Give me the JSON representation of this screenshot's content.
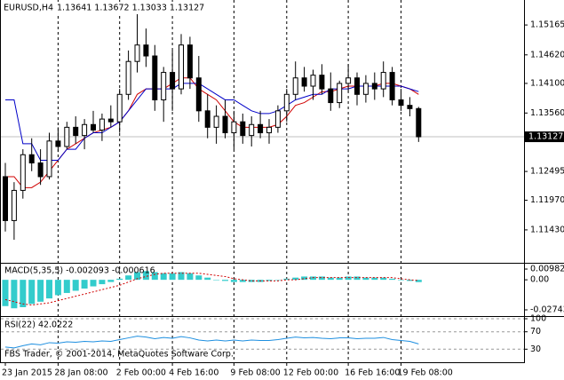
{
  "chart_data": {
    "type": "candlestick",
    "symbol": "EURUSD,H4",
    "quote": "1.13641 1.13672 1.13033 1.13127",
    "categories": [
      "23 Jan 2015",
      null,
      null,
      null,
      null,
      null,
      "28 Jan 08:00",
      null,
      null,
      null,
      null,
      null,
      null,
      "2 Feb 00:00",
      null,
      null,
      null,
      null,
      null,
      "4 Feb 16:00",
      null,
      null,
      null,
      null,
      null,
      null,
      "9 Feb 08:00",
      null,
      null,
      null,
      null,
      null,
      "12 Feb 00:00",
      null,
      null,
      null,
      null,
      null,
      null,
      "16 Feb 16:00",
      null,
      null,
      null,
      null,
      null,
      "19 Feb 08:00",
      null,
      null
    ],
    "open": [
      1.124,
      1.116,
      1.1215,
      1.128,
      1.1265,
      1.124,
      1.1305,
      1.1295,
      1.133,
      1.1315,
      1.1335,
      1.1325,
      1.1345,
      1.134,
      1.139,
      1.145,
      1.148,
      1.146,
      1.138,
      1.143,
      1.14,
      1.148,
      1.142,
      1.136,
      1.133,
      1.135,
      1.132,
      1.134,
      1.1315,
      1.1335,
      1.132,
      1.133,
      1.136,
      1.139,
      1.142,
      1.1405,
      1.1425,
      1.14,
      1.1375,
      1.141,
      1.142,
      1.139,
      1.141,
      1.14,
      1.143,
      1.138,
      1.137,
      1.13641
    ],
    "high": [
      1.1265,
      1.123,
      1.129,
      1.131,
      1.129,
      1.132,
      1.133,
      1.134,
      1.135,
      1.1345,
      1.136,
      1.1355,
      1.137,
      1.14,
      1.147,
      1.154,
      1.151,
      1.148,
      1.144,
      1.147,
      1.15,
      1.1495,
      1.146,
      1.139,
      1.137,
      1.138,
      1.136,
      1.1355,
      1.135,
      1.136,
      1.1345,
      1.137,
      1.14,
      1.145,
      1.144,
      1.1435,
      1.1445,
      1.143,
      1.1415,
      1.1445,
      1.143,
      1.1425,
      1.143,
      1.145,
      1.144,
      1.14,
      1.1385,
      1.13672
    ],
    "low": [
      1.114,
      1.1125,
      1.12,
      1.125,
      1.1225,
      1.1235,
      1.1285,
      1.129,
      1.13,
      1.129,
      1.132,
      1.1305,
      1.133,
      1.132,
      1.138,
      1.143,
      1.144,
      1.136,
      1.134,
      1.136,
      1.139,
      1.14,
      1.134,
      1.131,
      1.13,
      1.131,
      1.129,
      1.13,
      1.1295,
      1.131,
      1.13,
      1.132,
      1.134,
      1.138,
      1.1395,
      1.138,
      1.139,
      1.136,
      1.1365,
      1.1395,
      1.137,
      1.1375,
      1.138,
      1.1385,
      1.137,
      1.136,
      1.135,
      1.13033
    ],
    "close": [
      1.116,
      1.1215,
      1.128,
      1.1265,
      1.124,
      1.1305,
      1.1295,
      1.133,
      1.1315,
      1.1335,
      1.1325,
      1.1345,
      1.134,
      1.139,
      1.145,
      1.148,
      1.146,
      1.138,
      1.143,
      1.14,
      1.148,
      1.142,
      1.136,
      1.133,
      1.135,
      1.132,
      1.134,
      1.1315,
      1.1335,
      1.132,
      1.133,
      1.136,
      1.139,
      1.142,
      1.1405,
      1.1425,
      1.14,
      1.1375,
      1.141,
      1.142,
      1.139,
      1.141,
      1.14,
      1.143,
      1.138,
      1.137,
      1.1364,
      1.13127
    ],
    "lines": [
      {
        "color": "#d00000",
        "values": [
          1.124,
          1.124,
          1.122,
          1.122,
          1.123,
          1.125,
          1.127,
          1.129,
          1.13,
          1.131,
          1.132,
          1.1325,
          1.133,
          1.134,
          1.136,
          1.139,
          1.14,
          1.14,
          1.14,
          1.141,
          1.142,
          1.142,
          1.14,
          1.139,
          1.138,
          1.136,
          1.134,
          1.133,
          1.133,
          1.133,
          1.133,
          1.1335,
          1.135,
          1.137,
          1.1375,
          1.1385,
          1.1395,
          1.1395,
          1.14,
          1.1405,
          1.1405,
          1.1405,
          1.1405,
          1.141,
          1.141,
          1.1405,
          1.14,
          1.139
        ]
      },
      {
        "color": "#0000c8",
        "values": [
          1.138,
          1.138,
          1.13,
          1.13,
          1.127,
          1.127,
          1.127,
          1.129,
          1.129,
          1.131,
          1.132,
          1.132,
          1.133,
          1.134,
          1.136,
          1.138,
          1.14,
          1.14,
          1.14,
          1.14,
          1.141,
          1.141,
          1.141,
          1.14,
          1.139,
          1.138,
          1.138,
          1.137,
          1.136,
          1.1355,
          1.1355,
          1.136,
          1.137,
          1.138,
          1.1385,
          1.139,
          1.139,
          1.14,
          1.14,
          1.14,
          1.1405,
          1.1405,
          1.1405,
          1.1405,
          1.1405,
          1.1405,
          1.14,
          1.1395
        ]
      }
    ],
    "last_price": 1.13127,
    "ylim": [
      1.1083,
      1.1562
    ],
    "yticks": [
      1.15165,
      {
        "value": 1.1462,
        "label": "1.14620"
      },
      {
        "value": 1.141,
        "label": "1.14100"
      },
      {
        "value": 1.1356,
        "label": "1.13560"
      },
      1.12495,
      {
        "value": 1.1197,
        "label": "1.11970"
      },
      {
        "value": 1.1143,
        "label": "1.11430"
      }
    ],
    "macd": {
      "label": "MACD(5,35,5) -0.002093 -0.000616",
      "color": "#33cccc",
      "signal_color": "#d00000",
      "values": [
        -0.024,
        -0.026,
        -0.025,
        -0.022,
        -0.02,
        -0.017,
        -0.014,
        -0.012,
        -0.01,
        -0.008,
        -0.006,
        -0.004,
        -0.002,
        0.001,
        0.004,
        0.007,
        0.008,
        0.007,
        0.006,
        0.006,
        0.007,
        0.006,
        0.004,
        0.002,
        0.0,
        -0.001,
        -0.002,
        -0.002,
        -0.002,
        -0.002,
        -0.001,
        0.0,
        0.001,
        0.002,
        0.003,
        0.003,
        0.003,
        0.002,
        0.002,
        0.003,
        0.003,
        0.002,
        0.002,
        0.002,
        0.001,
        0.0,
        -0.001,
        -0.002093
      ],
      "signal": [
        -0.018,
        -0.02,
        -0.022,
        -0.023,
        -0.022,
        -0.021,
        -0.019,
        -0.017,
        -0.015,
        -0.013,
        -0.011,
        -0.009,
        -0.007,
        -0.005,
        -0.002,
        0.001,
        0.003,
        0.005,
        0.006,
        0.006,
        0.006,
        0.006,
        0.006,
        0.005,
        0.004,
        0.003,
        0.001,
        0.0,
        -0.001,
        -0.001,
        -0.001,
        -0.001,
        0.0,
        0.0,
        0.001,
        0.002,
        0.002,
        0.002,
        0.002,
        0.002,
        0.002,
        0.002,
        0.002,
        0.002,
        0.002,
        0.001,
        0.0,
        -0.000616
      ],
      "ylim": [
        -0.0323,
        0.0139
      ],
      "yticks": [
        0.009822,
        {
          "value": 0,
          "label": "0.00"
        },
        -0.027432
      ]
    },
    "rsi": {
      "label": "RSI(22) 42.0222",
      "color": "#1e8fe0",
      "values": [
        35,
        33,
        38,
        42,
        40,
        45,
        44,
        47,
        46,
        48,
        47,
        49,
        48,
        52,
        56,
        60,
        58,
        54,
        57,
        55,
        59,
        56,
        51,
        49,
        51,
        49,
        51,
        49,
        51,
        50,
        50,
        52,
        55,
        58,
        56,
        57,
        55,
        54,
        56,
        56,
        54,
        55,
        55,
        57,
        52,
        50,
        48,
        42.0222
      ],
      "ylim": [
        0,
        100
      ],
      "yticks": [
        100,
        70,
        30
      ]
    },
    "copyright": "FBS Trader, © 2001-2014, MetaQuotes Software Corp."
  }
}
